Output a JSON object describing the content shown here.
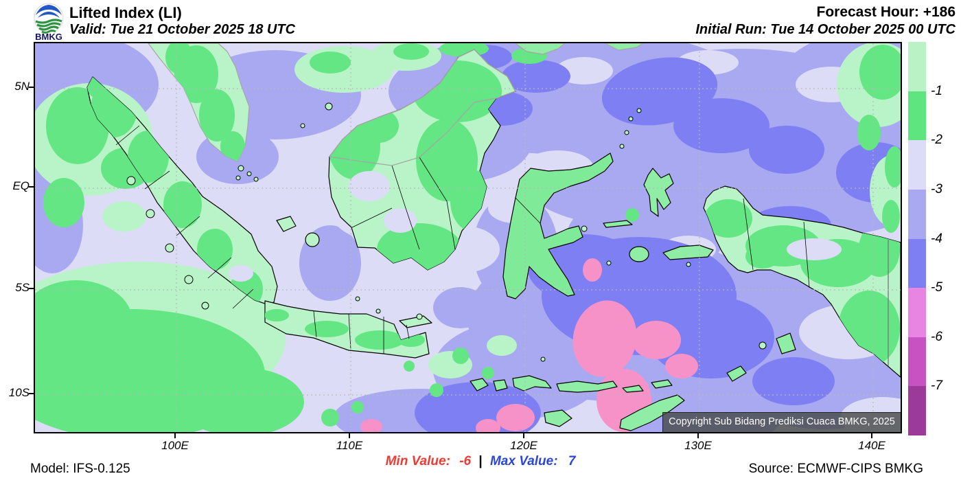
{
  "header": {
    "logo_text": "BMKG",
    "title": "Lifted Index (LI)",
    "valid": "Valid: Tue 21 October 2025 18 UTC",
    "forecast_hour": "Forecast Hour: +186",
    "initial_run": "Initial Run: Tue 14 October 2025 00 UTC"
  },
  "map": {
    "copyright": "Copyright Sub Bidang Prediksi Cuaca BMKG, 2025"
  },
  "axes": {
    "lat_labels": [
      "5N",
      "EQ",
      "5S",
      "10S"
    ],
    "lon_labels": [
      "100E",
      "110E",
      "120E",
      "130E",
      "140E"
    ]
  },
  "colorbar": {
    "ticks": [
      "-1",
      "-2",
      "-3",
      "-4",
      "-5",
      "-6",
      "-7"
    ],
    "colors": [
      "#b8f2c5",
      "#5fe57f",
      "#dcdcf6",
      "#a9a9f1",
      "#7f7ff4",
      "#e885e2",
      "#c653c1",
      "#9c3a99"
    ]
  },
  "footer": {
    "model": "Model: IFS-0.125",
    "min_label": "Min Value:",
    "min_value": "-6",
    "separator": "|",
    "max_label": "Max Value:",
    "max_value": "7",
    "source": "Source: ECMWF-CIPS BMKG"
  },
  "palette": {
    "sea_base": "#dcdcf6",
    "sea_mid": "#a9a9f1",
    "sea_deep": "#7f7ff4",
    "sea_pink": "#f792c8",
    "land_pale_green": "#b9f4c8",
    "land_green": "#63e683",
    "min_text_red": "#ee3b33",
    "max_text_blue": "#2b46d9"
  }
}
